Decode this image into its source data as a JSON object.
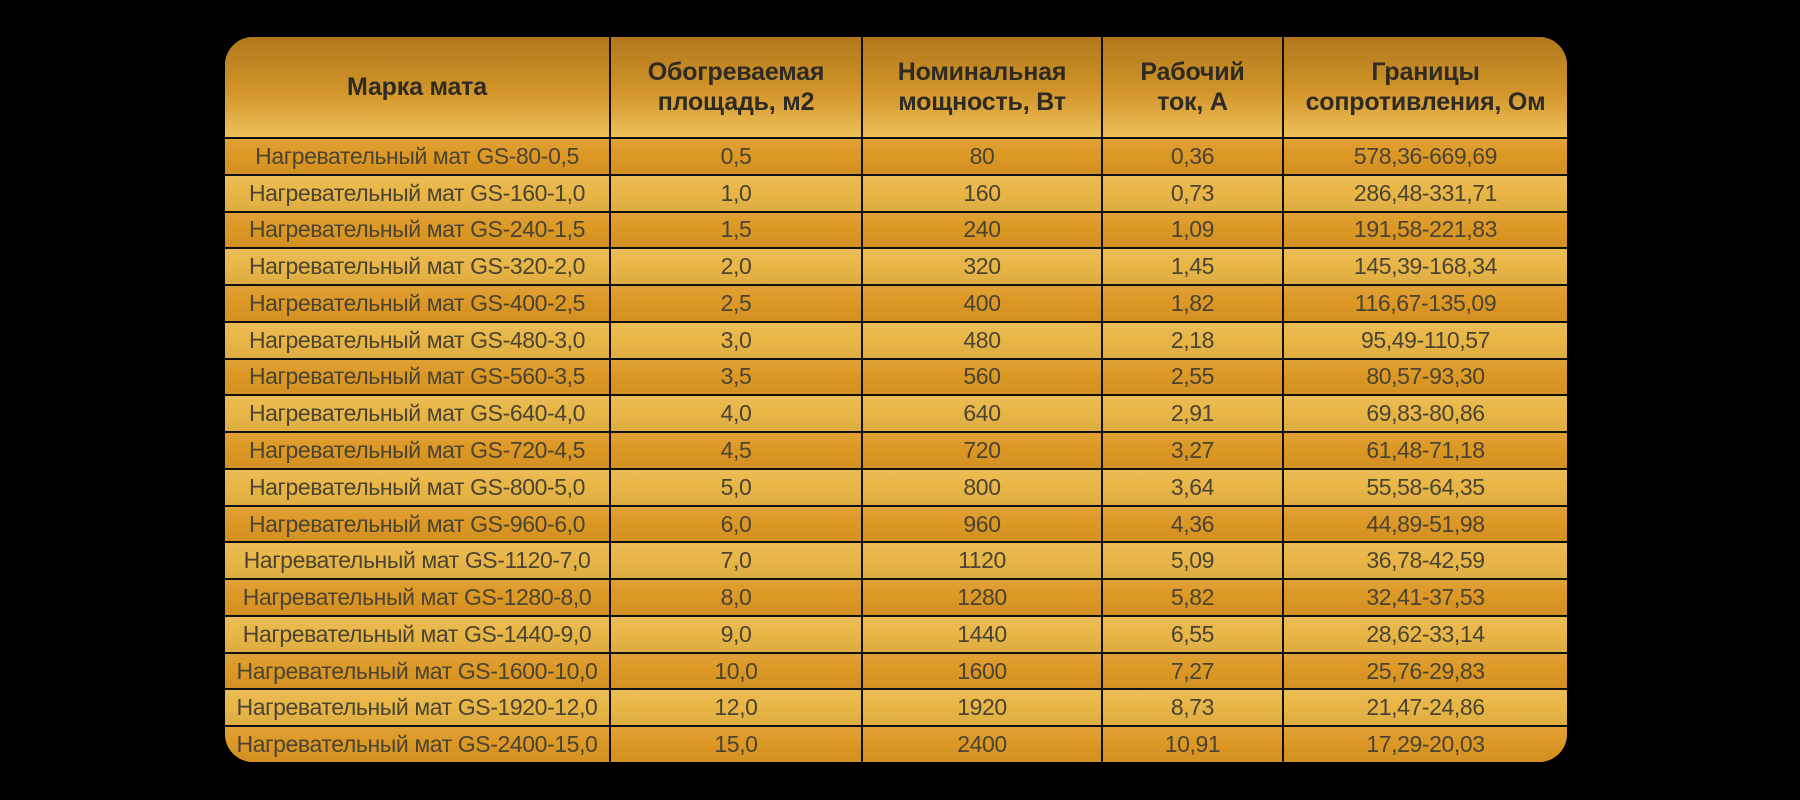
{
  "chart_data": {
    "type": "table",
    "columns": [
      "Марка мата",
      "Обогреваемая площадь, м2",
      "Номинальная мощность, Вт",
      "Рабочий ток, А",
      "Границы сопротивления, Ом"
    ],
    "rows": [
      [
        "Нагревательный мат GS-80-0,5",
        "0,5",
        "80",
        "0,36",
        "578,36-669,69"
      ],
      [
        "Нагревательный мат GS-160-1,0",
        "1,0",
        "160",
        "0,73",
        "286,48-331,71"
      ],
      [
        "Нагревательный мат GS-240-1,5",
        "1,5",
        "240",
        "1,09",
        "191,58-221,83"
      ],
      [
        "Нагревательный мат GS-320-2,0",
        "2,0",
        "320",
        "1,45",
        "145,39-168,34"
      ],
      [
        "Нагревательный мат GS-400-2,5",
        "2,5",
        "400",
        "1,82",
        "116,67-135,09"
      ],
      [
        "Нагревательный мат GS-480-3,0",
        "3,0",
        "480",
        "2,18",
        "95,49-110,57"
      ],
      [
        "Нагревательный мат GS-560-3,5",
        "3,5",
        "560",
        "2,55",
        "80,57-93,30"
      ],
      [
        "Нагревательный мат GS-640-4,0",
        "4,0",
        "640",
        "2,91",
        "69,83-80,86"
      ],
      [
        "Нагревательный мат GS-720-4,5",
        "4,5",
        "720",
        "3,27",
        "61,48-71,18"
      ],
      [
        "Нагревательный мат GS-800-5,0",
        "5,0",
        "800",
        "3,64",
        "55,58-64,35"
      ],
      [
        "Нагревательный мат GS-960-6,0",
        "6,0",
        "960",
        "4,36",
        "44,89-51,98"
      ],
      [
        "Нагревательный мат GS-1120-7,0",
        "7,0",
        "1120",
        "5,09",
        "36,78-42,59"
      ],
      [
        "Нагревательный мат GS-1280-8,0",
        "8,0",
        "1280",
        "5,82",
        "32,41-37,53"
      ],
      [
        "Нагревательный мат GS-1440-9,0",
        "9,0",
        "1440",
        "6,55",
        "28,62-33,14"
      ],
      [
        "Нагревательный мат GS-1600-10,0",
        "10,0",
        "1600",
        "7,27",
        "25,76-29,83"
      ],
      [
        "Нагревательный мат GS-1920-12,0",
        "12,0",
        "1920",
        "8,73",
        "21,47-24,86"
      ],
      [
        "Нагревательный мат GS-2400-15,0",
        "15,0",
        "2400",
        "10,91",
        "17,29-20,03"
      ]
    ],
    "layout": {
      "row_striping": "odd rows dark orange, even rows light gold",
      "grid": "black 2px lines between rows and columns",
      "corner_radius_px": 28
    }
  },
  "style": {
    "background": "#000000",
    "header_gradient_top": "#b1771c",
    "header_gradient_bottom": "#eec05a",
    "row_dark": "#dd9824",
    "row_light": "#e9b646",
    "grid_line": "#101010",
    "header_text": "#2d2b24",
    "body_text": "#4a4434"
  }
}
